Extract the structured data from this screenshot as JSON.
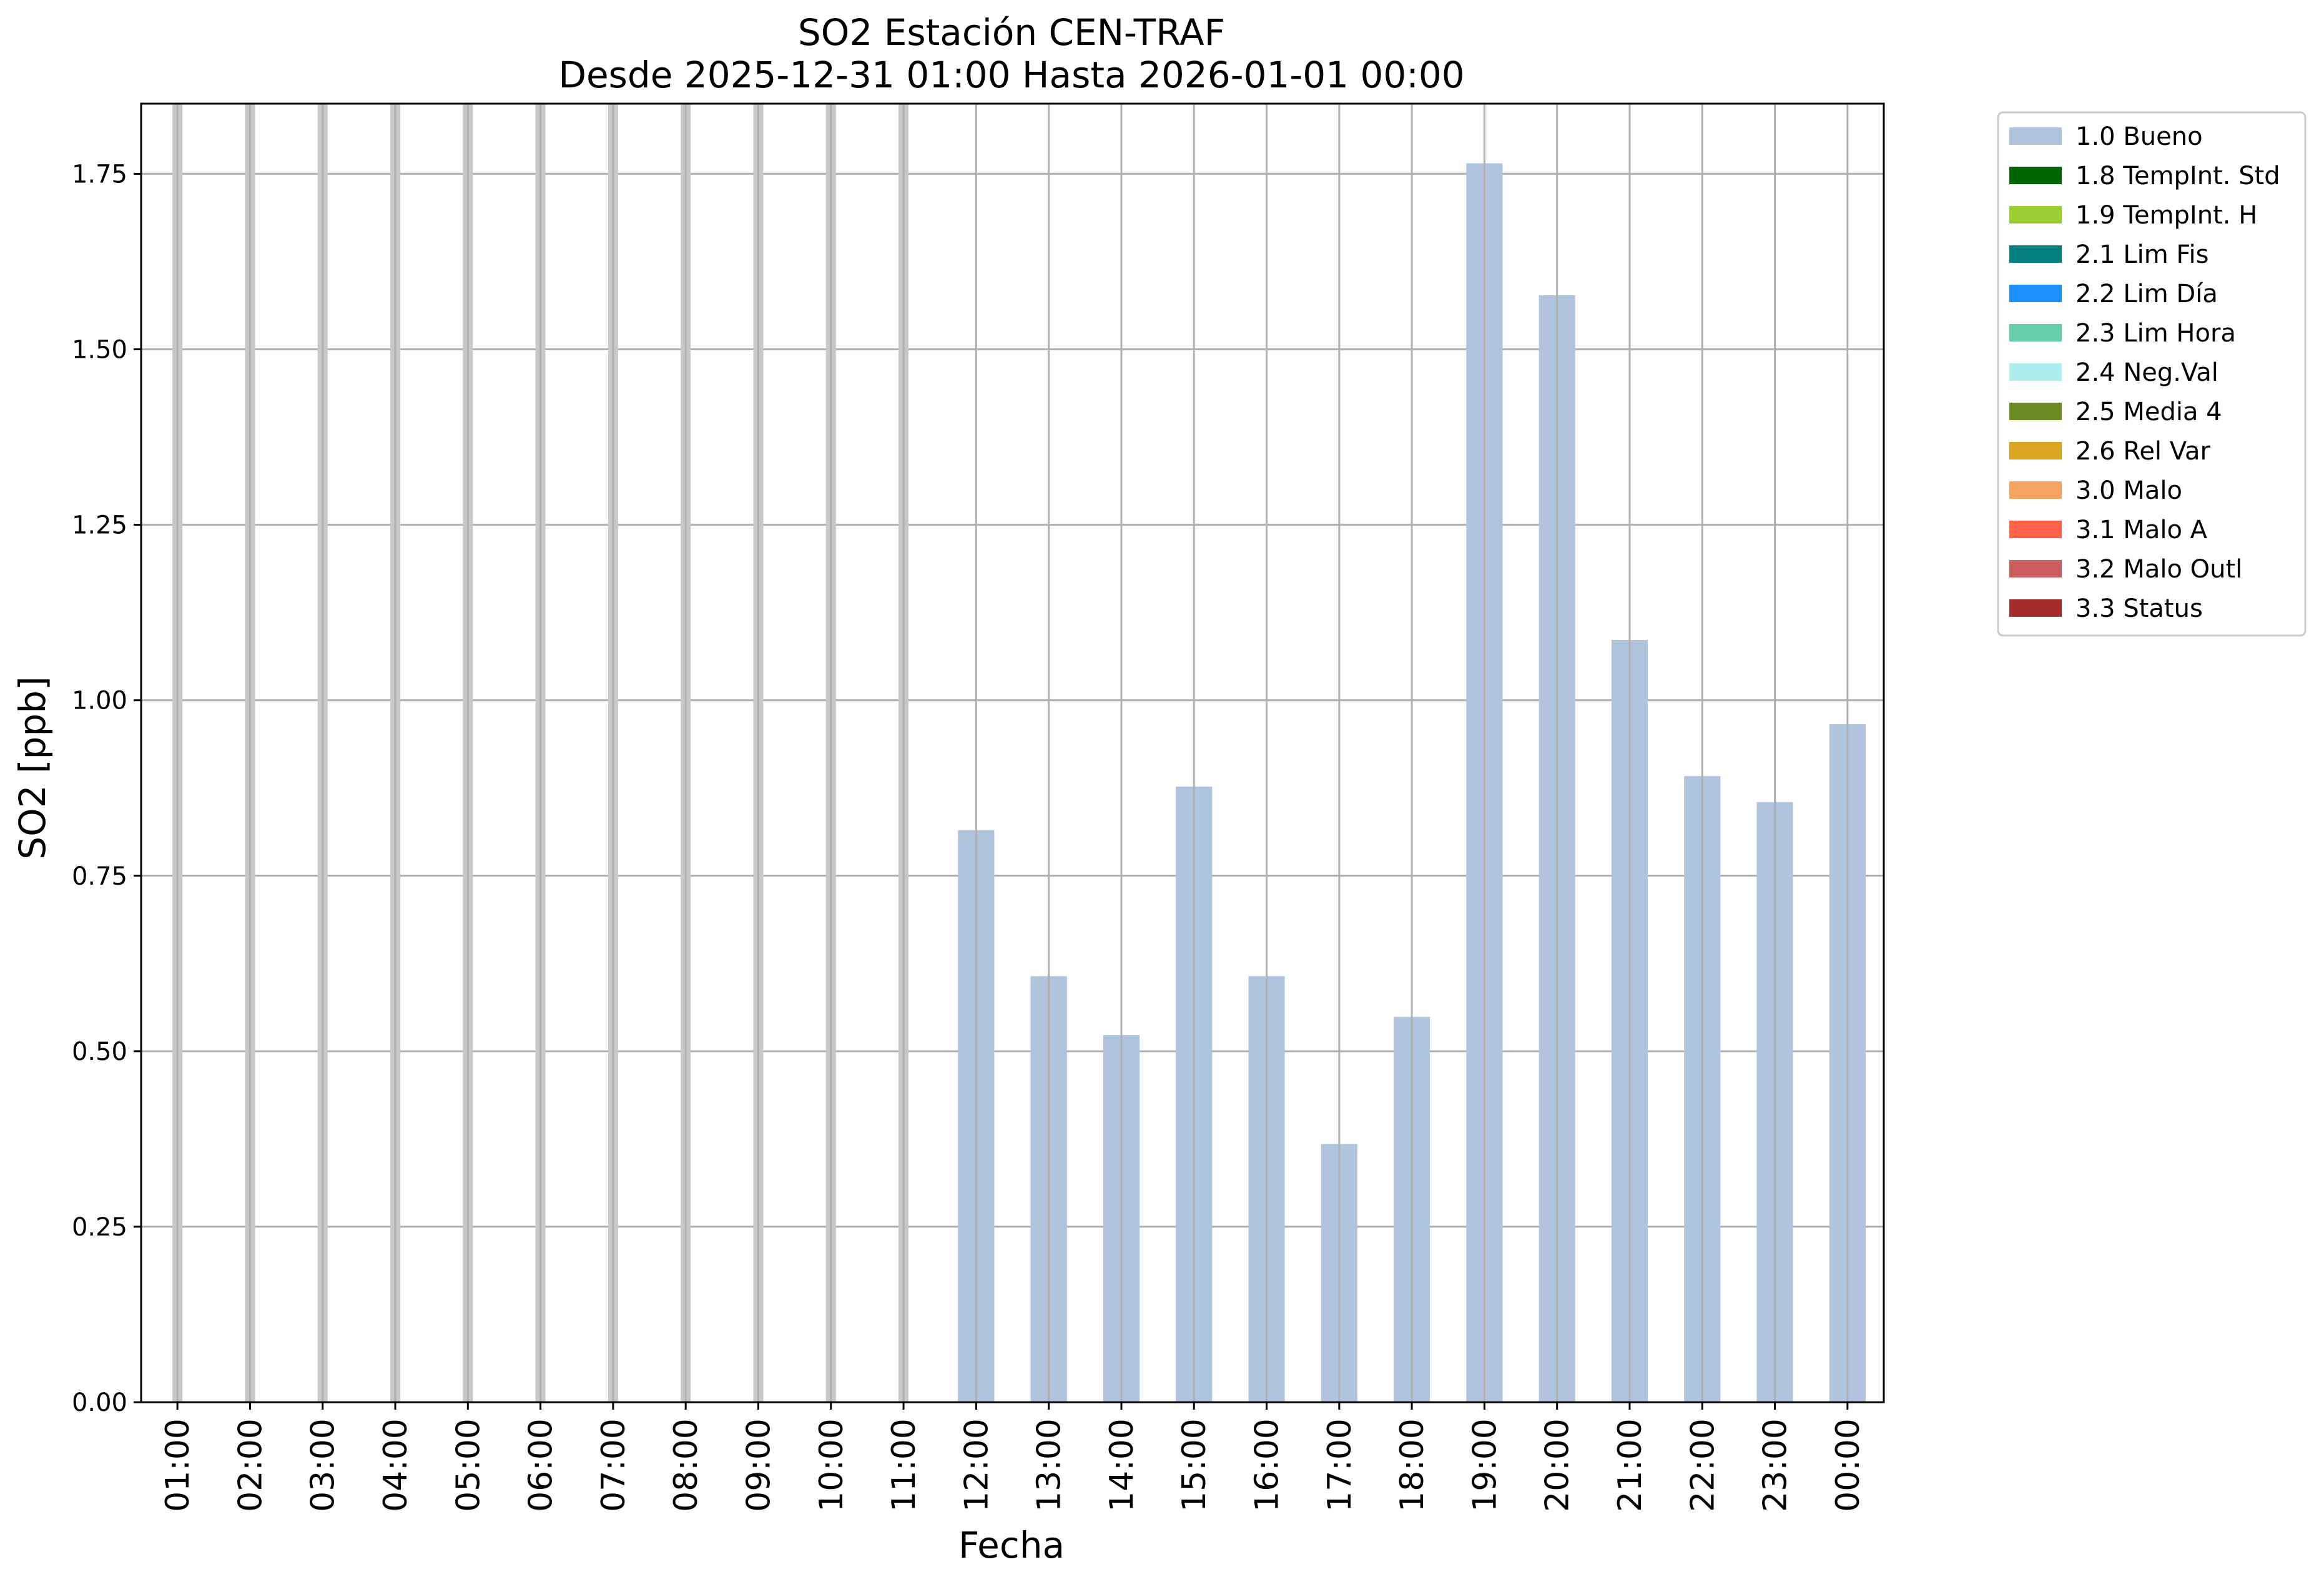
{
  "chart_data": {
    "type": "bar",
    "title": [
      "SO2 Estación CEN-TRAF",
      "Desde 2025-12-31 01:00 Hasta 2026-01-01 00:00"
    ],
    "xlabel": "Fecha",
    "ylabel": "SO2 [ppb]",
    "ylim": [
      0,
      1.85
    ],
    "yticks": [
      "0.00",
      "0.25",
      "0.50",
      "0.75",
      "1.00",
      "1.25",
      "1.50",
      "1.75"
    ],
    "grid": true,
    "legend_position": "outside-top-right",
    "categories": [
      "01:00",
      "02:00",
      "03:00",
      "04:00",
      "05:00",
      "06:00",
      "07:00",
      "08:00",
      "09:00",
      "10:00",
      "11:00",
      "12:00",
      "13:00",
      "14:00",
      "15:00",
      "16:00",
      "17:00",
      "18:00",
      "19:00",
      "20:00",
      "21:00",
      "22:00",
      "23:00",
      "00:00"
    ],
    "missing_color": "#c8c8c8",
    "series": [
      {
        "name": "1.0 Bueno",
        "color": "#b0c4de",
        "values": [
          null,
          null,
          null,
          null,
          null,
          null,
          null,
          null,
          null,
          null,
          null,
          0.815,
          0.607,
          0.523,
          0.877,
          0.607,
          0.368,
          0.549,
          1.765,
          1.577,
          1.086,
          0.892,
          0.855,
          0.966
        ]
      }
    ],
    "legend": [
      {
        "label": "1.0 Bueno",
        "color": "#b0c4de"
      },
      {
        "label": "1.8 TempInt. Std",
        "color": "#006400"
      },
      {
        "label": "1.9 TempInt. H",
        "color": "#9acd32"
      },
      {
        "label": "2.1 Lim Fis",
        "color": "#008080"
      },
      {
        "label": "2.2 Lim Día",
        "color": "#1e90ff"
      },
      {
        "label": "2.3 Lim Hora",
        "color": "#66cdaa"
      },
      {
        "label": "2.4 Neg.Val",
        "color": "#afeeee"
      },
      {
        "label": "2.5 Media 4",
        "color": "#6b8e23"
      },
      {
        "label": "2.6 Rel Var",
        "color": "#daa520"
      },
      {
        "label": "3.0 Malo",
        "color": "#f4a460"
      },
      {
        "label": "3.1 Malo A",
        "color": "#ff6347"
      },
      {
        "label": "3.2 Malo Outl",
        "color": "#cd5c5c"
      },
      {
        "label": "3.3 Status",
        "color": "#a52a2a"
      }
    ]
  }
}
